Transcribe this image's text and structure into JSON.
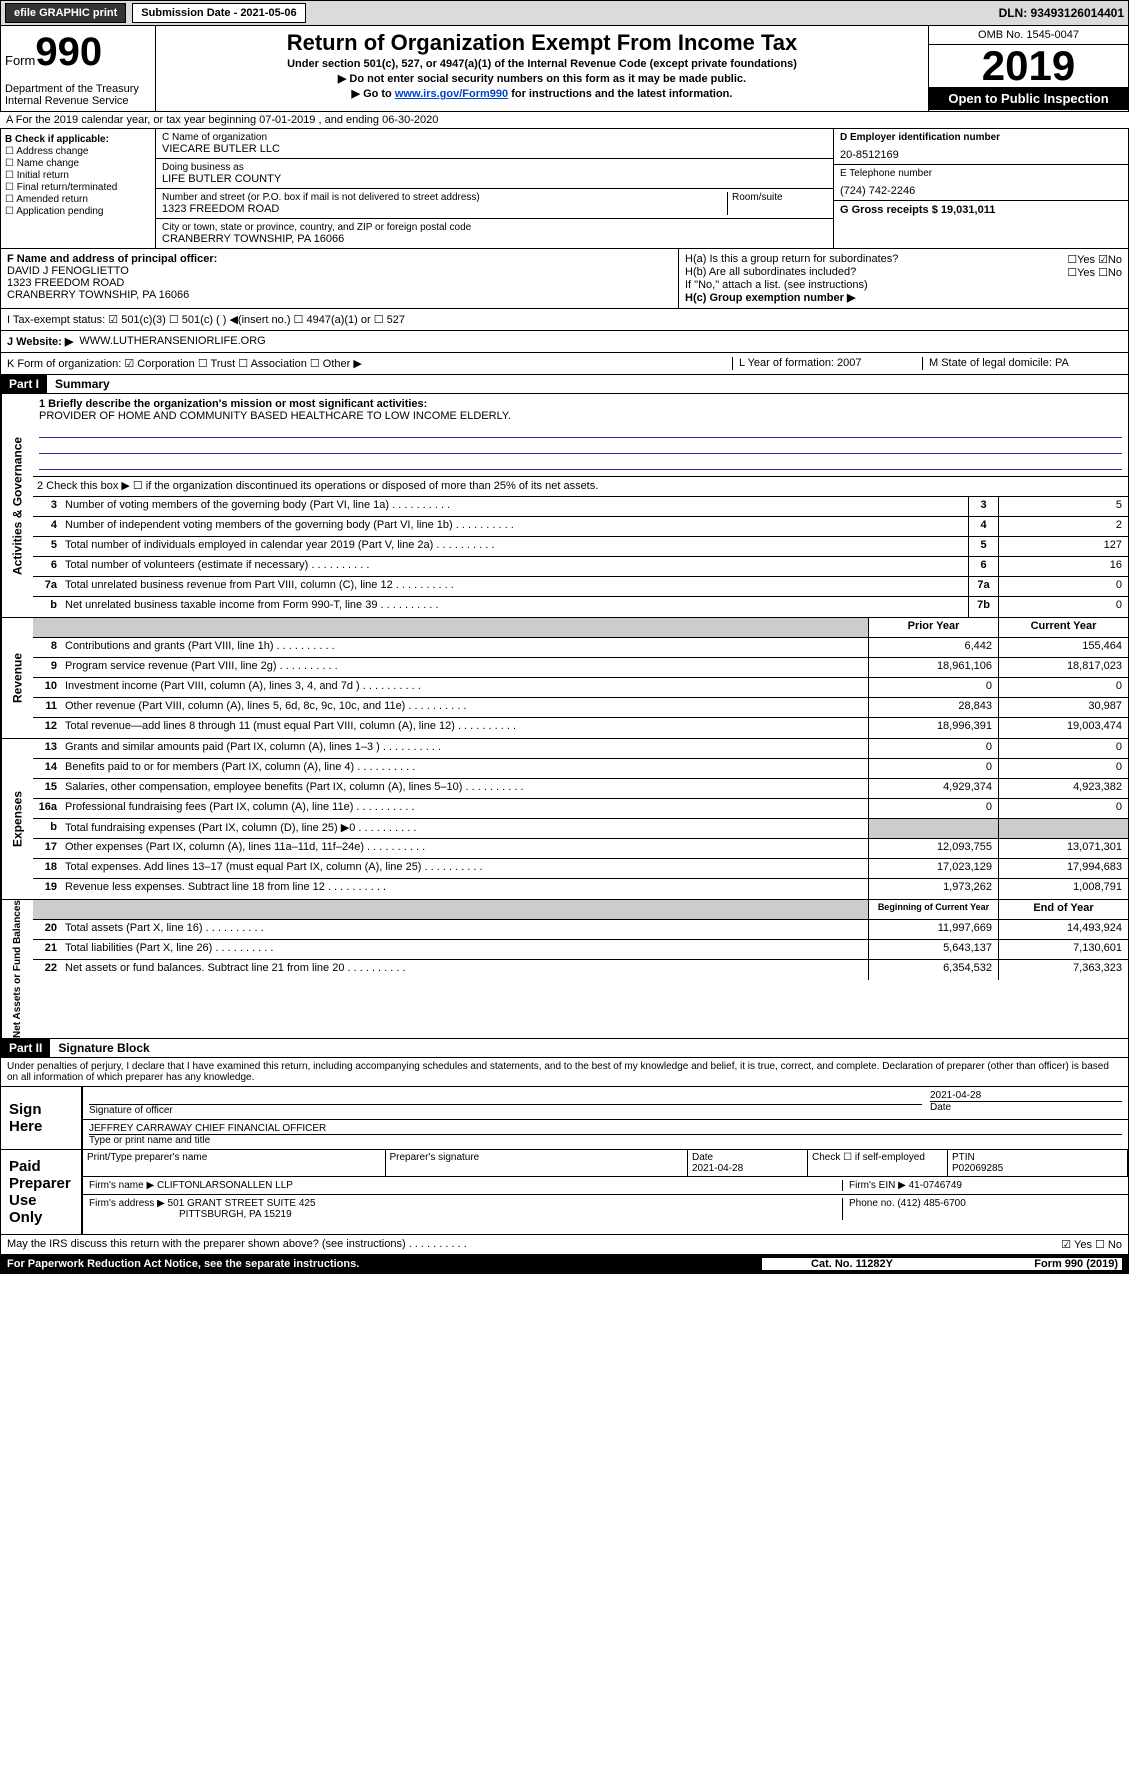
{
  "topbar": {
    "efile": "efile GRAPHIC print",
    "sub_label": "Submission Date - 2021-05-06",
    "dln": "DLN: 93493126014401"
  },
  "header": {
    "form_word": "Form",
    "form_num": "990",
    "dept": "Department of the Treasury\nInternal Revenue Service",
    "title": "Return of Organization Exempt From Income Tax",
    "under": "Under section 501(c), 527, or 4947(a)(1) of the Internal Revenue Code (except private foundations)",
    "ssn": "▶ Do not enter social security numbers on this form as it may be made public.",
    "goto_pre": "▶ Go to ",
    "goto_link": "www.irs.gov/Form990",
    "goto_post": " for instructions and the latest information.",
    "omb": "OMB No. 1545-0047",
    "year": "2019",
    "public": "Open to Public Inspection"
  },
  "row_a": "A For the 2019 calendar year, or tax year beginning 07-01-2019   , and ending 06-30-2020",
  "col_b": {
    "hdr": "B Check if applicable:",
    "items": [
      "☐ Address change",
      "☐ Name change",
      "☐ Initial return",
      "☐ Final return/terminated",
      "☐ Amended return",
      "☐ Application pending"
    ]
  },
  "col_c": {
    "name_lbl": "C Name of organization",
    "name": "VIECARE BUTLER LLC",
    "dba_lbl": "Doing business as",
    "dba": "LIFE BUTLER COUNTY",
    "addr_lbl": "Number and street (or P.O. box if mail is not delivered to street address)",
    "addr": "1323 FREEDOM ROAD",
    "room_lbl": "Room/suite",
    "city_lbl": "City or town, state or province, country, and ZIP or foreign postal code",
    "city": "CRANBERRY TOWNSHIP, PA  16066"
  },
  "col_d": {
    "ein_lbl": "D Employer identification number",
    "ein": "20-8512169",
    "tel_lbl": "E Telephone number",
    "tel": "(724) 742-2246",
    "gross_lbl": "G Gross receipts $ 19,031,011"
  },
  "fgh": {
    "f_lbl": "F Name and address of principal officer:",
    "f_name": "DAVID J FENOGLIETTO",
    "f_addr1": "1323 FREEDOM ROAD",
    "f_addr2": "CRANBERRY TOWNSHIP, PA  16066",
    "ha": "H(a) Is this a group return for subordinates?",
    "ha_ans": "☐Yes ☑No",
    "hb": "H(b) Are all subordinates included?",
    "hb_ans": "☐Yes ☐No",
    "hb_note": "If \"No,\" attach a list. (see instructions)",
    "hc": "H(c) Group exemption number ▶"
  },
  "tax_status": "I Tax-exempt status:  ☑ 501(c)(3)   ☐ 501(c) (  ) ◀(insert no.)   ☐ 4947(a)(1) or   ☐ 527",
  "website_lbl": "J Website: ▶",
  "website": "WWW.LUTHERANSENIORLIFE.ORG",
  "k": "K Form of organization:  ☑ Corporation  ☐ Trust  ☐ Association  ☐ Other ▶",
  "l": "L Year of formation: 2007",
  "m": "M State of legal domicile: PA",
  "part1": {
    "num": "Part I",
    "title": "Summary"
  },
  "mission_lbl": "1  Briefly describe the organization's mission or most significant activities:",
  "mission": "PROVIDER OF HOME AND COMMUNITY BASED HEALTHCARE TO LOW INCOME ELDERLY.",
  "line2": "2  Check this box ▶ ☐  if the organization discontinued its operations or disposed of more than 25% of its net assets.",
  "sidebars": {
    "gov": "Activities & Governance",
    "rev": "Revenue",
    "exp": "Expenses",
    "net": "Net Assets or Fund Balances"
  },
  "gov_rows": [
    {
      "n": "3",
      "t": "Number of voting members of the governing body (Part VI, line 1a)",
      "b": "3",
      "v": "5"
    },
    {
      "n": "4",
      "t": "Number of independent voting members of the governing body (Part VI, line 1b)",
      "b": "4",
      "v": "2"
    },
    {
      "n": "5",
      "t": "Total number of individuals employed in calendar year 2019 (Part V, line 2a)",
      "b": "5",
      "v": "127"
    },
    {
      "n": "6",
      "t": "Total number of volunteers (estimate if necessary)",
      "b": "6",
      "v": "16"
    },
    {
      "n": "7a",
      "t": "Total unrelated business revenue from Part VIII, column (C), line 12",
      "b": "7a",
      "v": "0"
    },
    {
      "n": "b",
      "t": "Net unrelated business taxable income from Form 990-T, line 39",
      "b": "7b",
      "v": "0"
    }
  ],
  "year_hdr": {
    "prior": "Prior Year",
    "current": "Current Year"
  },
  "rev_rows": [
    {
      "n": "8",
      "t": "Contributions and grants (Part VIII, line 1h)",
      "p": "6,442",
      "c": "155,464"
    },
    {
      "n": "9",
      "t": "Program service revenue (Part VIII, line 2g)",
      "p": "18,961,106",
      "c": "18,817,023"
    },
    {
      "n": "10",
      "t": "Investment income (Part VIII, column (A), lines 3, 4, and 7d )",
      "p": "0",
      "c": "0"
    },
    {
      "n": "11",
      "t": "Other revenue (Part VIII, column (A), lines 5, 6d, 8c, 9c, 10c, and 11e)",
      "p": "28,843",
      "c": "30,987"
    },
    {
      "n": "12",
      "t": "Total revenue—add lines 8 through 11 (must equal Part VIII, column (A), line 12)",
      "p": "18,996,391",
      "c": "19,003,474"
    }
  ],
  "exp_rows": [
    {
      "n": "13",
      "t": "Grants and similar amounts paid (Part IX, column (A), lines 1–3 )",
      "p": "0",
      "c": "0"
    },
    {
      "n": "14",
      "t": "Benefits paid to or for members (Part IX, column (A), line 4)",
      "p": "0",
      "c": "0"
    },
    {
      "n": "15",
      "t": "Salaries, other compensation, employee benefits (Part IX, column (A), lines 5–10)",
      "p": "4,929,374",
      "c": "4,923,382"
    },
    {
      "n": "16a",
      "t": "Professional fundraising fees (Part IX, column (A), line 11e)",
      "p": "0",
      "c": "0"
    },
    {
      "n": "b",
      "t": "Total fundraising expenses (Part IX, column (D), line 25) ▶0",
      "p": "",
      "c": "",
      "shade": true
    },
    {
      "n": "17",
      "t": "Other expenses (Part IX, column (A), lines 11a–11d, 11f–24e)",
      "p": "12,093,755",
      "c": "13,071,301"
    },
    {
      "n": "18",
      "t": "Total expenses. Add lines 13–17 (must equal Part IX, column (A), line 25)",
      "p": "17,023,129",
      "c": "17,994,683"
    },
    {
      "n": "19",
      "t": "Revenue less expenses. Subtract line 18 from line 12",
      "p": "1,973,262",
      "c": "1,008,791"
    }
  ],
  "net_hdr": {
    "begin": "Beginning of Current Year",
    "end": "End of Year"
  },
  "net_rows": [
    {
      "n": "20",
      "t": "Total assets (Part X, line 16)",
      "p": "11,997,669",
      "c": "14,493,924"
    },
    {
      "n": "21",
      "t": "Total liabilities (Part X, line 26)",
      "p": "5,643,137",
      "c": "7,130,601"
    },
    {
      "n": "22",
      "t": "Net assets or fund balances. Subtract line 21 from line 20",
      "p": "6,354,532",
      "c": "7,363,323"
    }
  ],
  "part2": {
    "num": "Part II",
    "title": "Signature Block"
  },
  "penalty": "Under penalties of perjury, I declare that I have examined this return, including accompanying schedules and statements, and to the best of my knowledge and belief, it is true, correct, and complete. Declaration of preparer (other than officer) is based on all information of which preparer has any knowledge.",
  "sign": {
    "here": "Sign Here",
    "sig_lbl": "Signature of officer",
    "date": "2021-04-28",
    "date_lbl": "Date",
    "name": "JEFFREY CARRAWAY CHIEF FINANCIAL OFFICER",
    "name_lbl": "Type or print name and title"
  },
  "paid": {
    "hdr": "Paid Preparer Use Only",
    "h1": "Print/Type preparer's name",
    "h2": "Preparer's signature",
    "h3": "Date",
    "h3v": "2021-04-28",
    "h4": "Check ☐ if self-employed",
    "h5_lbl": "PTIN",
    "h5": "P02069285",
    "firm_lbl": "Firm's name    ▶",
    "firm": "CLIFTONLARSONALLEN LLP",
    "ein_lbl": "Firm's EIN ▶",
    "ein": "41-0746749",
    "addr_lbl": "Firm's address ▶",
    "addr": "501 GRANT STREET SUITE 425",
    "addr2": "PITTSBURGH, PA  15219",
    "phone_lbl": "Phone no.",
    "phone": "(412) 485-6700"
  },
  "discuss": "May the IRS discuss this return with the preparer shown above? (see instructions)",
  "discuss_ans": "☑ Yes  ☐ No",
  "foot": {
    "pra": "For Paperwork Reduction Act Notice, see the separate instructions.",
    "cat": "Cat. No. 11282Y",
    "form": "Form 990 (2019)"
  }
}
